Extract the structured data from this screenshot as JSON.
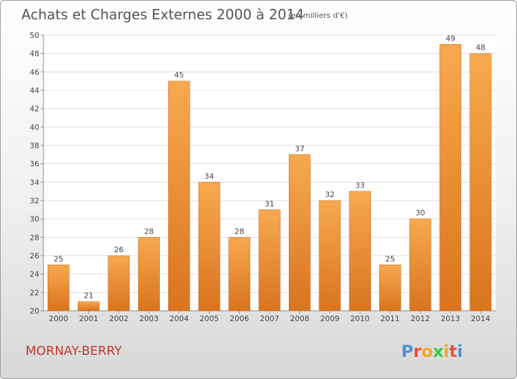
{
  "header": {
    "title": "Achats et Charges Externes 2000 à 2014",
    "unit": "(en milliers d'€)"
  },
  "footer": {
    "commune": "MORNAY-BERRY",
    "logo_letters": [
      "P",
      "r",
      "o",
      "x",
      "i",
      "t",
      "i"
    ],
    "logo_colors": [
      "#4a90d9",
      "#e94e3c",
      "#f5a623",
      "#2ecc40",
      "#f5a623",
      "#e94e3c",
      "#4a90d9"
    ]
  },
  "colors": {
    "bar_light": "#f7a94f",
    "bar_dark": "#d9741f",
    "bar_edge": "#c9651a",
    "grid": "#dddddd",
    "commune": "#c0392b"
  },
  "chart_data": {
    "type": "bar",
    "categories": [
      "2000",
      "2001",
      "2002",
      "2003",
      "2004",
      "2005",
      "2006",
      "2007",
      "2008",
      "2009",
      "2010",
      "2011",
      "2012",
      "2013",
      "2014"
    ],
    "values": [
      25,
      21,
      26,
      28,
      45,
      34,
      28,
      31,
      37,
      32,
      33,
      25,
      30,
      49,
      48
    ],
    "title": "Achats et Charges Externes 2000 à 2014",
    "ylim": [
      20,
      50
    ],
    "yticks": [
      20,
      22,
      24,
      26,
      28,
      30,
      32,
      34,
      36,
      38,
      40,
      42,
      44,
      46,
      48,
      50
    ],
    "grid": true,
    "legend": "none"
  }
}
